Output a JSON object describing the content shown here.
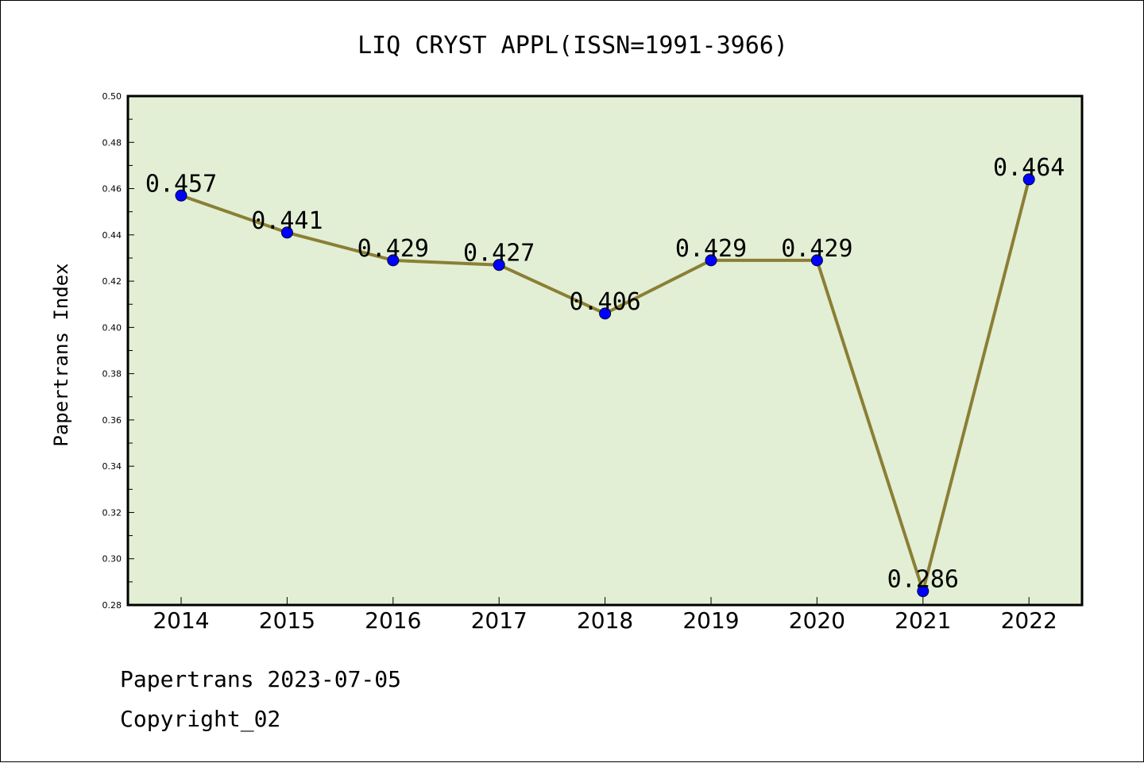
{
  "chart_data": {
    "type": "line",
    "title": "LIQ CRYST APPL(ISSN=1991-3966)",
    "xlabel": "",
    "ylabel": "Papertrans Index",
    "categories": [
      "2014",
      "2015",
      "2016",
      "2017",
      "2018",
      "2019",
      "2020",
      "2021",
      "2022"
    ],
    "values": [
      0.457,
      0.441,
      0.429,
      0.427,
      0.406,
      0.429,
      0.429,
      0.286,
      0.464
    ],
    "value_labels": [
      "0.457",
      "0.441",
      "0.429",
      "0.427",
      "0.406",
      "0.429",
      "0.429",
      "0.286",
      "0.464"
    ],
    "ylim": [
      0.28,
      0.5
    ],
    "yticks": [
      "0.50",
      "0.48",
      "0.46",
      "0.44",
      "0.42",
      "0.40",
      "0.38",
      "0.36",
      "0.34",
      "0.32",
      "0.30",
      "0.28"
    ],
    "grid": false,
    "legend": "none",
    "colors": {
      "plot_background": "#e2efd5",
      "line": "#8b7f35",
      "marker": "#0000ff"
    }
  },
  "footer": {
    "line1": "Papertrans 2023-07-05",
    "line2": "Copyright_02"
  }
}
